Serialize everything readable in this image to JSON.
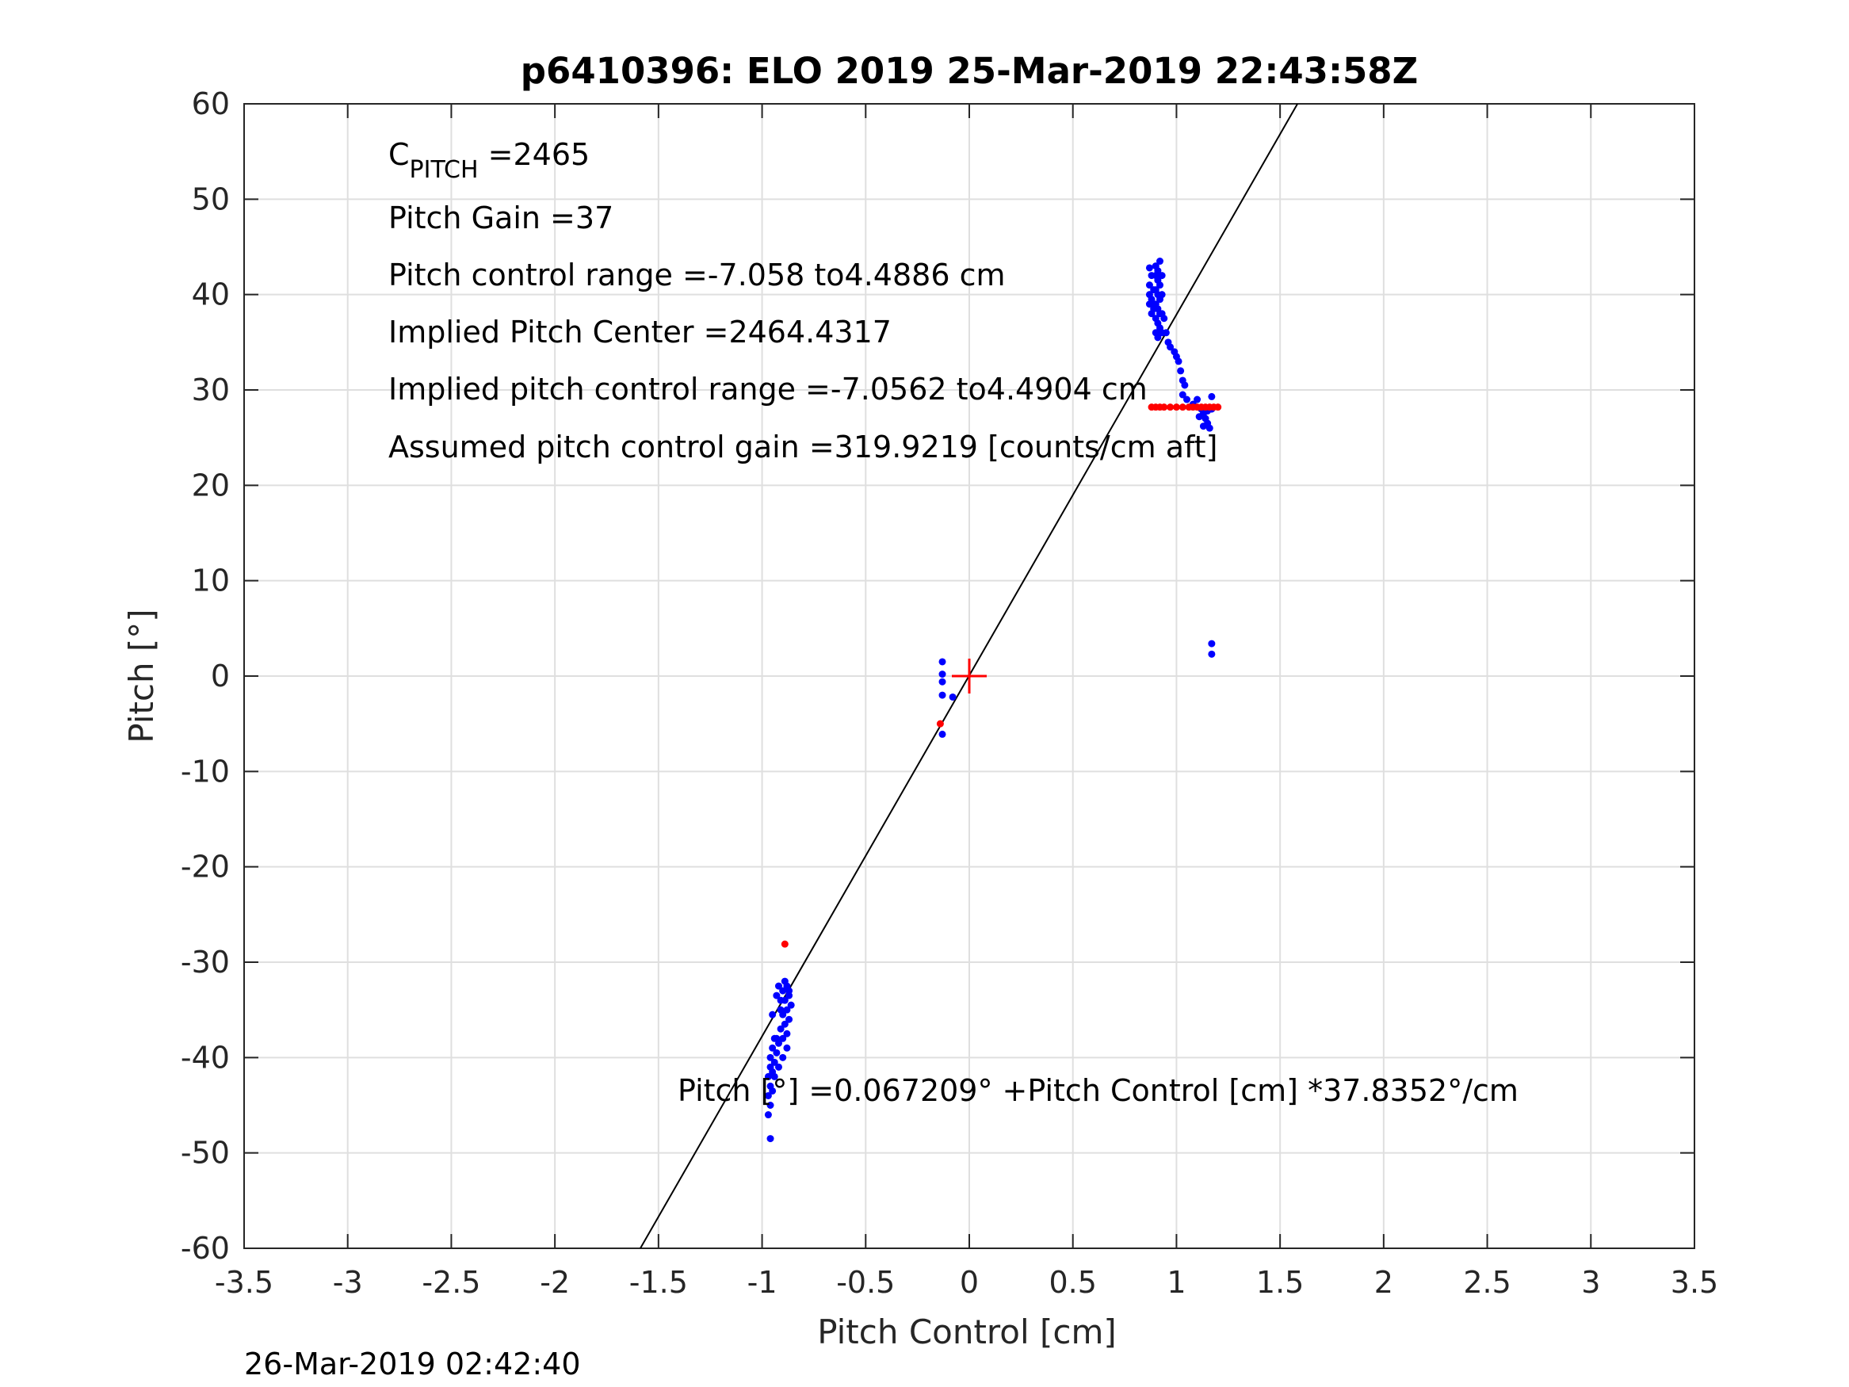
{
  "chart_data": {
    "type": "scatter",
    "title": "p6410396: ELO 2019 25-Mar-2019 22:43:58Z",
    "xlabel": "Pitch Control [cm]",
    "ylabel": "Pitch [°]",
    "xlim": [
      -3.5,
      3.5
    ],
    "ylim": [
      -60,
      60
    ],
    "x_ticks": [
      -3.5,
      -3,
      -2.5,
      -2,
      -1.5,
      -1,
      -0.5,
      0,
      0.5,
      1,
      1.5,
      2,
      2.5,
      3,
      3.5
    ],
    "x_tick_labels": [
      "-3.5",
      "-3",
      "-2.5",
      "-2",
      "-1.5",
      "-1",
      "-0.5",
      "0",
      "0.5",
      "1",
      "1.5",
      "2",
      "2.5",
      "3",
      "3.5"
    ],
    "y_ticks": [
      60,
      50,
      40,
      30,
      20,
      10,
      0,
      -10,
      -20,
      -30,
      -40,
      -50,
      -60
    ],
    "y_tick_labels": [
      "60",
      "50",
      "40",
      "30",
      "20",
      "10",
      "0",
      "-10",
      "-20",
      "-30",
      "-40",
      "-50",
      "-60"
    ],
    "grid": true,
    "fit_line": {
      "intercept": 0.067209,
      "slope": 37.8352,
      "color": "#000000"
    },
    "center_marker": {
      "x": 0,
      "y": 0,
      "color": "#ff0000"
    },
    "series": [
      {
        "color": "#0000ff",
        "points": [
          [
            -0.96,
            -48.5
          ],
          [
            -0.97,
            -46
          ],
          [
            -0.96,
            -45
          ],
          [
            -0.97,
            -44
          ],
          [
            -0.95,
            -43.5
          ],
          [
            -0.96,
            -43
          ],
          [
            -0.97,
            -42
          ],
          [
            -0.95,
            -41.5
          ],
          [
            -0.96,
            -41
          ],
          [
            -0.94,
            -40.5
          ],
          [
            -0.96,
            -40
          ],
          [
            -0.93,
            -39.5
          ],
          [
            -0.95,
            -39
          ],
          [
            -0.92,
            -38.5
          ],
          [
            -0.94,
            -38
          ],
          [
            -0.9,
            -38
          ],
          [
            -0.88,
            -37.5
          ],
          [
            -0.91,
            -37
          ],
          [
            -0.89,
            -36.5
          ],
          [
            -0.87,
            -36
          ],
          [
            -0.9,
            -35.5
          ],
          [
            -0.88,
            -35
          ],
          [
            -0.86,
            -34.5
          ],
          [
            -0.89,
            -34
          ],
          [
            -0.91,
            -34
          ],
          [
            -0.87,
            -33.5
          ],
          [
            -0.9,
            -33
          ],
          [
            -0.88,
            -32.5
          ],
          [
            -0.92,
            -32.5
          ],
          [
            -0.89,
            -32
          ],
          [
            -0.87,
            -33
          ],
          [
            -0.93,
            -33.5
          ],
          [
            -0.91,
            -35
          ],
          [
            -0.95,
            -35.5
          ],
          [
            -0.88,
            -39
          ],
          [
            -0.9,
            -40
          ],
          [
            -0.92,
            -41
          ],
          [
            -0.94,
            -42
          ],
          [
            -0.93,
            -38
          ],
          [
            -0.13,
            1.5
          ],
          [
            -0.13,
            0.2
          ],
          [
            -0.13,
            -0.6
          ],
          [
            -0.13,
            -2
          ],
          [
            -0.08,
            -2.2
          ],
          [
            -0.13,
            -6.1
          ],
          [
            1.17,
            3.4
          ],
          [
            1.17,
            2.3
          ],
          [
            0.87,
            42.8
          ],
          [
            0.88,
            42
          ],
          [
            0.87,
            41
          ],
          [
            0.89,
            40.5
          ],
          [
            0.87,
            40
          ],
          [
            0.88,
            39.5
          ],
          [
            0.87,
            39
          ],
          [
            0.89,
            38.5
          ],
          [
            0.88,
            38
          ],
          [
            0.9,
            43
          ],
          [
            0.91,
            42.5
          ],
          [
            0.92,
            43.5
          ],
          [
            0.9,
            42
          ],
          [
            0.91,
            41.5
          ],
          [
            0.92,
            41
          ],
          [
            0.9,
            40.5
          ],
          [
            0.91,
            40
          ],
          [
            0.92,
            39.5
          ],
          [
            0.9,
            39
          ],
          [
            0.91,
            38.5
          ],
          [
            0.92,
            38
          ],
          [
            0.9,
            37.5
          ],
          [
            0.91,
            37
          ],
          [
            0.92,
            36.5
          ],
          [
            0.9,
            36
          ],
          [
            0.91,
            35.5
          ],
          [
            0.93,
            42
          ],
          [
            0.93,
            40
          ],
          [
            0.93,
            38
          ],
          [
            0.93,
            36
          ],
          [
            0.94,
            37.5
          ],
          [
            0.95,
            36
          ],
          [
            0.96,
            35
          ],
          [
            0.97,
            34.5
          ],
          [
            0.99,
            34
          ],
          [
            1.0,
            33.5
          ],
          [
            1.01,
            33
          ],
          [
            1.02,
            32
          ],
          [
            1.03,
            31
          ],
          [
            1.04,
            30.5
          ],
          [
            1.03,
            29.5
          ],
          [
            1.05,
            29
          ],
          [
            1.08,
            28.5
          ],
          [
            1.1,
            29
          ],
          [
            1.12,
            28
          ],
          [
            1.13,
            27.5
          ],
          [
            1.14,
            27
          ],
          [
            1.15,
            26.5
          ],
          [
            1.16,
            26
          ],
          [
            1.17,
            28
          ],
          [
            1.17,
            29.3
          ],
          [
            1.15,
            27.8
          ],
          [
            1.13,
            26.2
          ],
          [
            1.11,
            27.2
          ]
        ]
      },
      {
        "color": "#ff0000",
        "points": [
          [
            -0.89,
            -28.1
          ],
          [
            -0.14,
            -5.0
          ],
          [
            0.88,
            28.2
          ],
          [
            0.9,
            28.2
          ],
          [
            0.92,
            28.2
          ],
          [
            0.94,
            28.2
          ],
          [
            0.97,
            28.2
          ],
          [
            1.0,
            28.2
          ],
          [
            1.03,
            28.2
          ],
          [
            1.06,
            28.2
          ],
          [
            1.08,
            28.2
          ],
          [
            1.1,
            28.2
          ],
          [
            1.12,
            28.2
          ],
          [
            1.14,
            28.2
          ],
          [
            1.16,
            28.2
          ],
          [
            1.18,
            28.2
          ],
          [
            1.2,
            28.2
          ]
        ]
      }
    ],
    "annotations": [
      {
        "base": "C",
        "subscript": "PITCH",
        "text": " =2465"
      },
      {
        "text": "Pitch Gain =37"
      },
      {
        "text": "Pitch control range =-7.058 to4.4886 cm"
      },
      {
        "text": "Implied Pitch Center =2464.4317"
      },
      {
        "text": "Implied pitch control range =-7.0562 to4.4904 cm"
      },
      {
        "text": "Assumed pitch control gain =319.9219 [counts/cm aft]"
      }
    ],
    "equation": "Pitch [°] =0.067209° +Pitch Control [cm] *37.8352°/cm",
    "timestamp": "26-Mar-2019 02:42:40"
  }
}
